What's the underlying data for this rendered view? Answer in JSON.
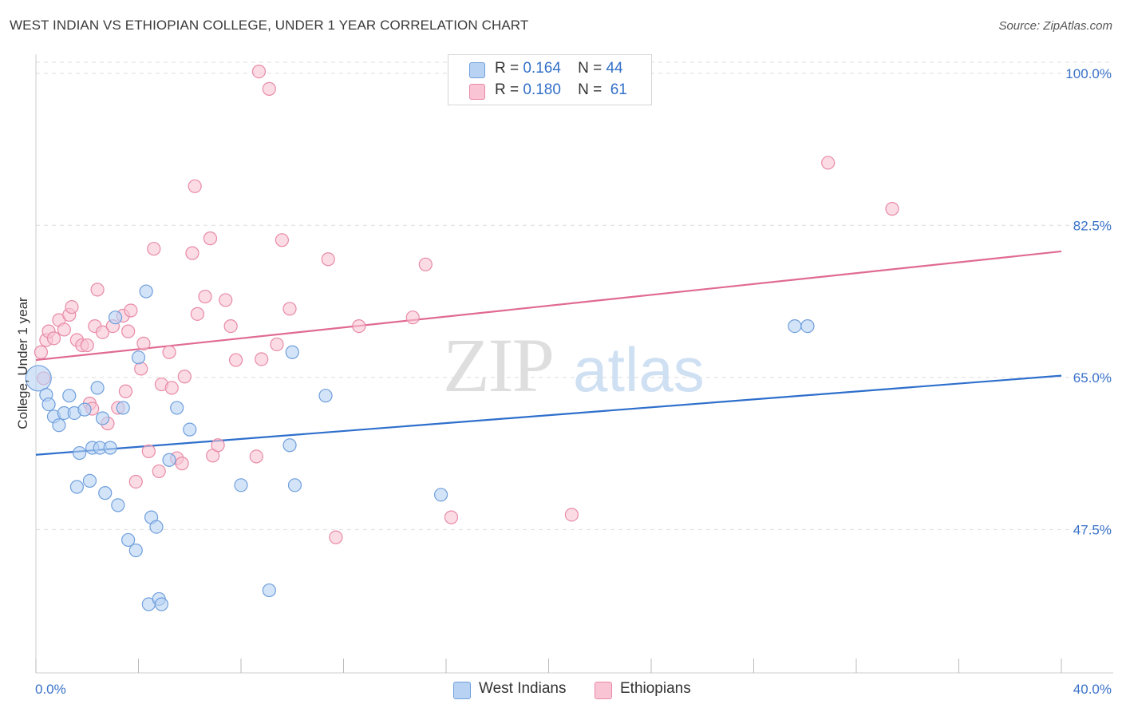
{
  "header": {
    "title": "WEST INDIAN VS ETHIOPIAN COLLEGE, UNDER 1 YEAR CORRELATION CHART",
    "source": "Source: ZipAtlas.com"
  },
  "legend": {
    "rows": [
      {
        "r_label": "R =",
        "r_value": "0.164",
        "n_label": "N =",
        "n_value": "44"
      },
      {
        "r_label": "R =",
        "r_value": "0.180",
        "n_label": "N =",
        "n_value": "61"
      }
    ]
  },
  "watermark": {
    "zip": "ZIP",
    "atlas": "atlas"
  },
  "colors": {
    "west_indians_fill": "#b8d2f3",
    "west_indians_stroke": "#6f9fdc",
    "west_indians_line": "#2e6fcc",
    "ethiopians_fill": "#f9c4d3",
    "ethiopians_stroke": "#e88aa6",
    "ethiopians_line": "#e06a93",
    "tick_label": "#3a72c8",
    "grid": "#dddddd"
  },
  "chart_data": {
    "type": "scatter",
    "title": "WEST INDIAN VS ETHIOPIAN COLLEGE, UNDER 1 YEAR CORRELATION CHART",
    "xlabel": "",
    "ylabel": "College, Under 1 year",
    "xlim": [
      0,
      40
    ],
    "ylim": [
      31,
      102
    ],
    "x_tick_labels": [
      "0.0%",
      "40.0%"
    ],
    "y_ticks": [
      47.5,
      65.0,
      82.5,
      100.0
    ],
    "y_tick_labels": [
      "47.5%",
      "65.0%",
      "82.5%",
      "100.0%"
    ],
    "grid": true,
    "series": [
      {
        "name": "West Indians",
        "R": 0.164,
        "N": 44,
        "trend": {
          "x": [
            0,
            40
          ],
          "y": [
            56.1,
            65.2
          ]
        },
        "points": [
          [
            0.1,
            64.9,
            "large"
          ],
          [
            0.4,
            63.0
          ],
          [
            0.5,
            61.9
          ],
          [
            0.7,
            60.5
          ],
          [
            0.9,
            59.5
          ],
          [
            1.1,
            60.9
          ],
          [
            1.3,
            62.9
          ],
          [
            1.5,
            60.9
          ],
          [
            1.6,
            52.4
          ],
          [
            1.7,
            56.3
          ],
          [
            1.9,
            61.3
          ],
          [
            2.1,
            53.1
          ],
          [
            2.2,
            56.9
          ],
          [
            2.4,
            63.8
          ],
          [
            2.5,
            56.9
          ],
          [
            2.6,
            60.3
          ],
          [
            2.7,
            51.7
          ],
          [
            2.9,
            56.9
          ],
          [
            3.1,
            71.9
          ],
          [
            3.2,
            50.3
          ],
          [
            3.4,
            61.5
          ],
          [
            3.6,
            46.3
          ],
          [
            3.9,
            45.1
          ],
          [
            4.0,
            67.3
          ],
          [
            4.3,
            74.9
          ],
          [
            4.4,
            38.9
          ],
          [
            4.5,
            48.9
          ],
          [
            4.7,
            47.8
          ],
          [
            4.8,
            39.5
          ],
          [
            4.9,
            38.9
          ],
          [
            5.2,
            55.5
          ],
          [
            5.5,
            61.5
          ],
          [
            6.0,
            59.0
          ],
          [
            8.0,
            52.6
          ],
          [
            9.1,
            40.5
          ],
          [
            9.9,
            57.2
          ],
          [
            10.0,
            67.9
          ],
          [
            10.1,
            52.6
          ],
          [
            11.3,
            62.9
          ],
          [
            15.8,
            51.5
          ],
          [
            29.6,
            70.9
          ],
          [
            30.1,
            70.9
          ]
        ]
      },
      {
        "name": "Ethiopians",
        "R": 0.18,
        "N": 61,
        "trend": {
          "x": [
            0,
            40
          ],
          "y": [
            67.0,
            79.5
          ]
        },
        "points": [
          [
            0.2,
            67.9
          ],
          [
            0.3,
            64.9
          ],
          [
            0.4,
            69.3
          ],
          [
            0.5,
            70.3
          ],
          [
            0.7,
            69.5
          ],
          [
            0.9,
            71.6
          ],
          [
            1.1,
            70.5
          ],
          [
            1.3,
            72.2
          ],
          [
            1.4,
            73.1
          ],
          [
            1.6,
            69.3
          ],
          [
            1.8,
            68.7
          ],
          [
            2.0,
            68.7
          ],
          [
            2.1,
            62.0
          ],
          [
            2.2,
            61.4
          ],
          [
            2.3,
            70.9
          ],
          [
            2.4,
            75.1
          ],
          [
            2.6,
            70.2
          ],
          [
            2.8,
            59.7
          ],
          [
            3.0,
            70.9
          ],
          [
            3.2,
            61.5
          ],
          [
            3.4,
            72.1
          ],
          [
            3.5,
            63.4
          ],
          [
            3.6,
            70.3
          ],
          [
            3.7,
            72.7
          ],
          [
            3.9,
            53.0
          ],
          [
            4.1,
            66.0
          ],
          [
            4.2,
            68.9
          ],
          [
            4.4,
            56.5
          ],
          [
            4.6,
            79.8
          ],
          [
            4.8,
            54.2
          ],
          [
            4.9,
            64.2
          ],
          [
            5.2,
            67.9
          ],
          [
            5.3,
            63.8
          ],
          [
            5.5,
            55.7
          ],
          [
            5.7,
            55.1
          ],
          [
            5.8,
            65.1
          ],
          [
            6.1,
            79.3
          ],
          [
            6.2,
            87.0
          ],
          [
            6.3,
            72.3
          ],
          [
            6.6,
            74.3
          ],
          [
            6.8,
            81.0
          ],
          [
            6.9,
            56.0
          ],
          [
            7.1,
            57.2
          ],
          [
            7.4,
            73.9
          ],
          [
            7.6,
            70.9
          ],
          [
            7.8,
            67.0
          ],
          [
            8.6,
            55.9
          ],
          [
            8.7,
            100.2
          ],
          [
            8.8,
            67.1
          ],
          [
            9.1,
            98.2
          ],
          [
            9.4,
            68.8
          ],
          [
            9.6,
            80.8
          ],
          [
            9.9,
            72.9
          ],
          [
            11.4,
            78.6
          ],
          [
            11.7,
            46.6
          ],
          [
            12.6,
            70.9
          ],
          [
            14.7,
            71.9
          ],
          [
            15.2,
            78.0
          ],
          [
            16.2,
            48.9
          ],
          [
            20.9,
            49.2
          ],
          [
            30.9,
            89.7
          ],
          [
            33.4,
            84.4
          ]
        ]
      }
    ]
  }
}
